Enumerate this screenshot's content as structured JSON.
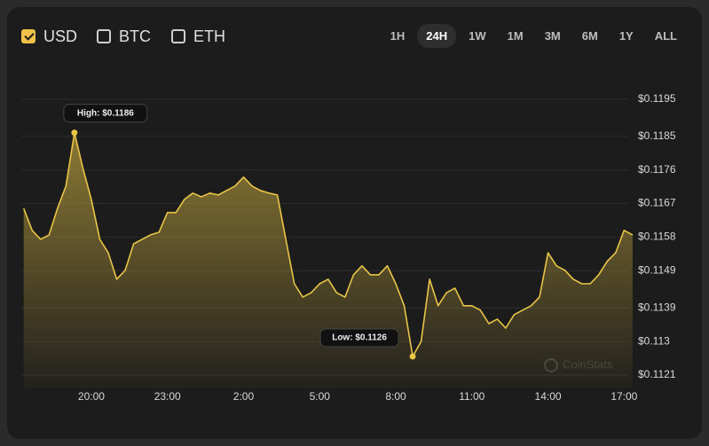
{
  "currencies": [
    {
      "label": "USD",
      "checked": true
    },
    {
      "label": "BTC",
      "checked": false
    },
    {
      "label": "ETH",
      "checked": false
    }
  ],
  "ranges": [
    {
      "label": "1H"
    },
    {
      "label": "24H",
      "selected": true
    },
    {
      "label": "1W"
    },
    {
      "label": "1M"
    },
    {
      "label": "3M"
    },
    {
      "label": "6M"
    },
    {
      "label": "1Y"
    },
    {
      "label": "ALL"
    }
  ],
  "chart_data": {
    "type": "line",
    "color": "#e8c547",
    "categories": [
      null,
      null,
      null,
      null,
      null,
      null,
      null,
      null,
      "20:00",
      null,
      null,
      null,
      null,
      null,
      null,
      null,
      null,
      "23:00",
      null,
      null,
      null,
      null,
      null,
      null,
      null,
      null,
      "2:00",
      null,
      null,
      null,
      null,
      null,
      null,
      null,
      null,
      "5:00",
      null,
      null,
      null,
      null,
      null,
      null,
      null,
      null,
      "8:00",
      null,
      null,
      null,
      null,
      null,
      null,
      null,
      null,
      "11:00",
      null,
      null,
      null,
      null,
      null,
      null,
      null,
      null,
      "14:00",
      null,
      null,
      null,
      null,
      null,
      null,
      null,
      null,
      "17:00",
      null
    ],
    "values": [
      0.11657,
      0.11598,
      0.11574,
      0.11586,
      0.11657,
      0.11717,
      0.1186,
      0.11765,
      0.11681,
      0.11574,
      0.11538,
      0.11467,
      0.11491,
      0.11562,
      0.11574,
      0.11586,
      0.11593,
      0.11646,
      0.11646,
      0.11681,
      0.11698,
      0.11688,
      0.11698,
      0.11693,
      0.11705,
      0.11717,
      0.11741,
      0.11717,
      0.11705,
      0.11698,
      0.11693,
      0.11574,
      0.11455,
      0.11419,
      0.11431,
      0.11455,
      0.11467,
      0.11431,
      0.11419,
      0.11479,
      0.11503,
      0.11479,
      0.11479,
      0.11503,
      0.11455,
      0.11396,
      0.1126,
      0.113,
      0.11467,
      0.11396,
      0.11431,
      0.11443,
      0.11396,
      0.11396,
      0.11384,
      0.11348,
      0.1136,
      0.11336,
      0.11372,
      0.11384,
      0.11396,
      0.11419,
      0.11538,
      0.11503,
      0.11491,
      0.11467,
      0.11455,
      0.11455,
      0.11479,
      0.11515,
      0.11538,
      0.11598,
      0.11586
    ],
    "ylim": [
      0.1119,
      0.1199
    ],
    "yticks": [
      {
        "value": 0.1195,
        "label": "$0.1195"
      },
      {
        "value": 0.1185,
        "label": "$0.1185"
      },
      {
        "value": 0.1176,
        "label": "$0.1176"
      },
      {
        "value": 0.1167,
        "label": "$0.1167"
      },
      {
        "value": 0.1158,
        "label": "$0.1158"
      },
      {
        "value": 0.1149,
        "label": "$0.1149"
      },
      {
        "value": 0.1139,
        "label": "$0.1139"
      },
      {
        "value": 0.113,
        "label": "$0.113"
      },
      {
        "value": 0.1121,
        "label": "$0.1121"
      }
    ],
    "grid": true,
    "annotations": [
      {
        "text": "High: $0.1186",
        "index": 6
      },
      {
        "text": "Low: $0.1126",
        "index": 46
      }
    ],
    "watermark": "CoinStats"
  }
}
